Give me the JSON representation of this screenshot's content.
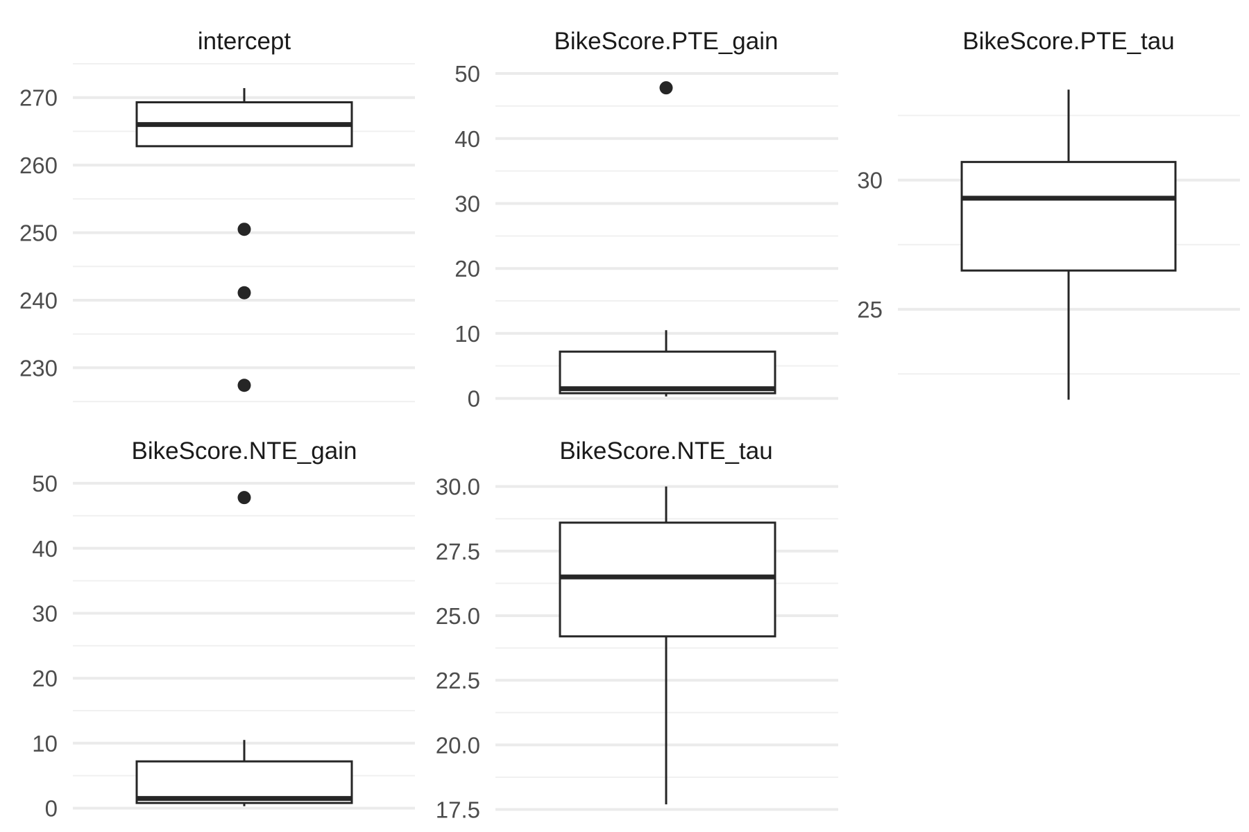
{
  "chart_data": [
    {
      "type": "boxplot",
      "title": "intercept",
      "ylim": [
        224.5,
        275
      ],
      "major_ticks": [
        230,
        240,
        250,
        260,
        270
      ],
      "tick_labels": [
        "230",
        "240",
        "250",
        "260",
        "270"
      ],
      "minor_ticks": [
        225,
        235,
        245,
        255,
        265,
        275
      ],
      "box": {
        "whisker_low": 262.8,
        "q1": 262.8,
        "median": 266,
        "q3": 269.3,
        "whisker_high": 271.4
      },
      "outliers": [
        250.5,
        241.1,
        227.4
      ],
      "grid": "horizontal"
    },
    {
      "type": "boxplot",
      "title": "BikeScore.PTE_gain",
      "ylim": [
        -1,
        51.5
      ],
      "major_ticks": [
        0,
        10,
        20,
        30,
        40,
        50
      ],
      "tick_labels": [
        "0",
        "10",
        "20",
        "30",
        "40",
        "50"
      ],
      "minor_ticks": [
        5,
        15,
        25,
        35,
        45
      ],
      "box": {
        "whisker_low": 0.3,
        "q1": 0.8,
        "median": 1.5,
        "q3": 7.2,
        "whisker_high": 10.5
      },
      "outliers": [
        47.8
      ],
      "grid": "horizontal"
    },
    {
      "type": "boxplot",
      "title": "BikeScore.PTE_tau",
      "ylim": [
        21.3,
        34.5
      ],
      "major_ticks": [
        25,
        30
      ],
      "tick_labels": [
        "25",
        "30"
      ],
      "minor_ticks": [
        22.5,
        27.5,
        32.5
      ],
      "box": {
        "whisker_low": 21.5,
        "q1": 26.5,
        "median": 29.3,
        "q3": 30.7,
        "whisker_high": 33.5
      },
      "outliers": [],
      "grid": "horizontal"
    },
    {
      "type": "boxplot",
      "title": "BikeScore.NTE_gain",
      "ylim": [
        -1,
        51.5
      ],
      "major_ticks": [
        0,
        10,
        20,
        30,
        40,
        50
      ],
      "tick_labels": [
        "0",
        "10",
        "20",
        "30",
        "40",
        "50"
      ],
      "minor_ticks": [
        5,
        15,
        25,
        35,
        45
      ],
      "box": {
        "whisker_low": 0.3,
        "q1": 0.8,
        "median": 1.5,
        "q3": 7.2,
        "whisker_high": 10.5
      },
      "outliers": [
        47.8
      ],
      "grid": "horizontal"
    },
    {
      "type": "boxplot",
      "title": "BikeScore.NTE_tau",
      "ylim": [
        17.3,
        30.5
      ],
      "major_ticks": [
        17.5,
        20,
        22.5,
        25,
        27.5,
        30
      ],
      "tick_labels": [
        "17.5",
        "20.0",
        "22.5",
        "25.0",
        "27.5",
        "30.0"
      ],
      "minor_ticks": [
        18.75,
        21.25,
        23.75,
        26.25,
        28.75
      ],
      "box": {
        "whisker_low": 17.7,
        "q1": 24.2,
        "median": 26.5,
        "q3": 28.6,
        "whisker_high": 30.0
      },
      "outliers": [],
      "grid": "horizontal"
    }
  ],
  "style": {
    "grid_major_color": "#ebebeb",
    "grid_minor_color": "#f0f0f0",
    "box_stroke_color": "#262626",
    "box_fill_color": "#ffffff",
    "outlier_color": "#262626"
  }
}
